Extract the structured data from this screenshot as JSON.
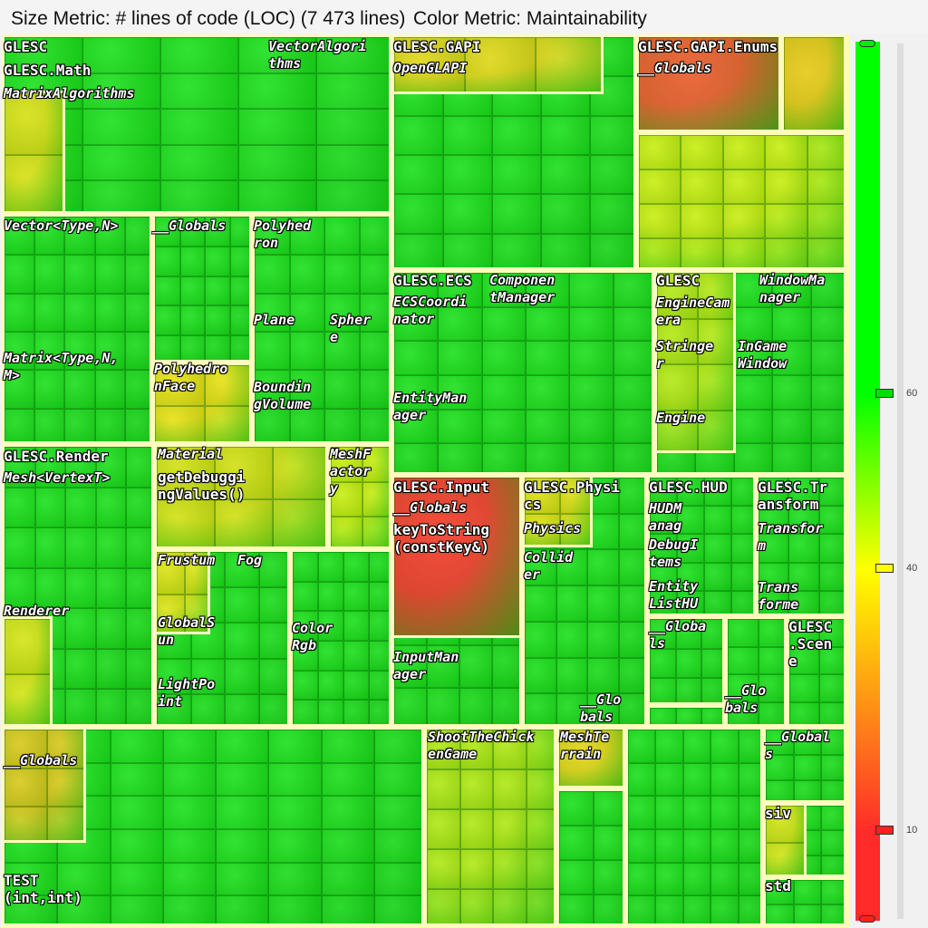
{
  "header": {
    "size_metric": "Size Metric: # lines of code (LOC) (7 473 lines)",
    "color_metric": "Color Metric: Maintainability"
  },
  "legend": {
    "ticks": [
      "60",
      "40",
      "10"
    ],
    "colors": {
      "high": "#00ff00",
      "mid": "#ffff00",
      "low": "#ff2a2a"
    }
  },
  "labels": {
    "math_root": "GLESC",
    "math": "GLESC.Math",
    "matrix_algorithms": "MatrixAlgorithms",
    "vector_algorithms": "VectorAlgori\nthms",
    "vector_type": "Vector<Type,N>",
    "math_globals": "__Globals",
    "polyhedron": "Polyhed\nron",
    "plane": "Plane",
    "sphere": "Spher\ne",
    "matrix_type": "Matrix<Type,N,\nM>",
    "polyhedron_face": "Polyhedro\nnFace",
    "bounding_volume": "Boundin\ngVolume",
    "gapi": "GLESC.GAPI",
    "opengl_api": "OpenGLAPI",
    "gapi_enums": "GLESC.GAPI.Enums",
    "enums_globals": "__Globals",
    "ecs": "GLESC.ECS",
    "component_manager": "Componen\ntManager",
    "ecs_coordinator": "ECSCoordi\nnator",
    "entity_manager": "EntityMan\nager",
    "glesc_engine_pkg": "GLESC",
    "window_manager": "WindowMa\nnager",
    "engine_camera": "EngineCam\nera",
    "stringer": "Stringe\nr",
    "ingame_window": "InGame\nWindow",
    "engine": "Engine",
    "render": "GLESC.Render",
    "mesh_vertex": "Mesh<VertexT>",
    "material": "Material",
    "get_debugging_values": "getDebuggi\nngValues()",
    "mesh_factory": "MeshF\nactor\ny",
    "frustum": "Frustum",
    "fog": "Fog",
    "renderer": "Renderer",
    "global_sun": "GlobalS\nun",
    "color_rgb": "Color\nRgb",
    "light_point": "LightPo\nint",
    "input": "GLESC.Input",
    "input_globals": "__Globals",
    "key_to_string": "keyToString\n(constKey&)",
    "input_manager": "InputMan\nager",
    "physics_pkg": "GLESC.Physi\ncs",
    "physics": "Physics",
    "collider": "Collid\ner",
    "physics_globals": "__Glo\nbals",
    "hud": "GLESC.HUD",
    "hud_manager": "HUDM\nanag",
    "debug_items": "DebugI\ntems",
    "entity_list_hud": "Entity\nListHU",
    "hud_globals": "__Globa\nls",
    "transform_pkg": "GLESC.Tr\nansform",
    "transformer_a": "Transfor\nm",
    "transformer_b": "Trans\nforme",
    "small_globals": "__Glo\nbals",
    "scene": "GLESC\n.Scen\ne",
    "root_globals": "__Globals",
    "test_fn": "TEST\n(int,int)",
    "shoot_the_chicken": "ShootTheChick\nenGame",
    "mesh_terrain": "MeshTe\nrrain",
    "bottom_globals": "__Global\ns",
    "siv": "siv",
    "std": "std"
  }
}
